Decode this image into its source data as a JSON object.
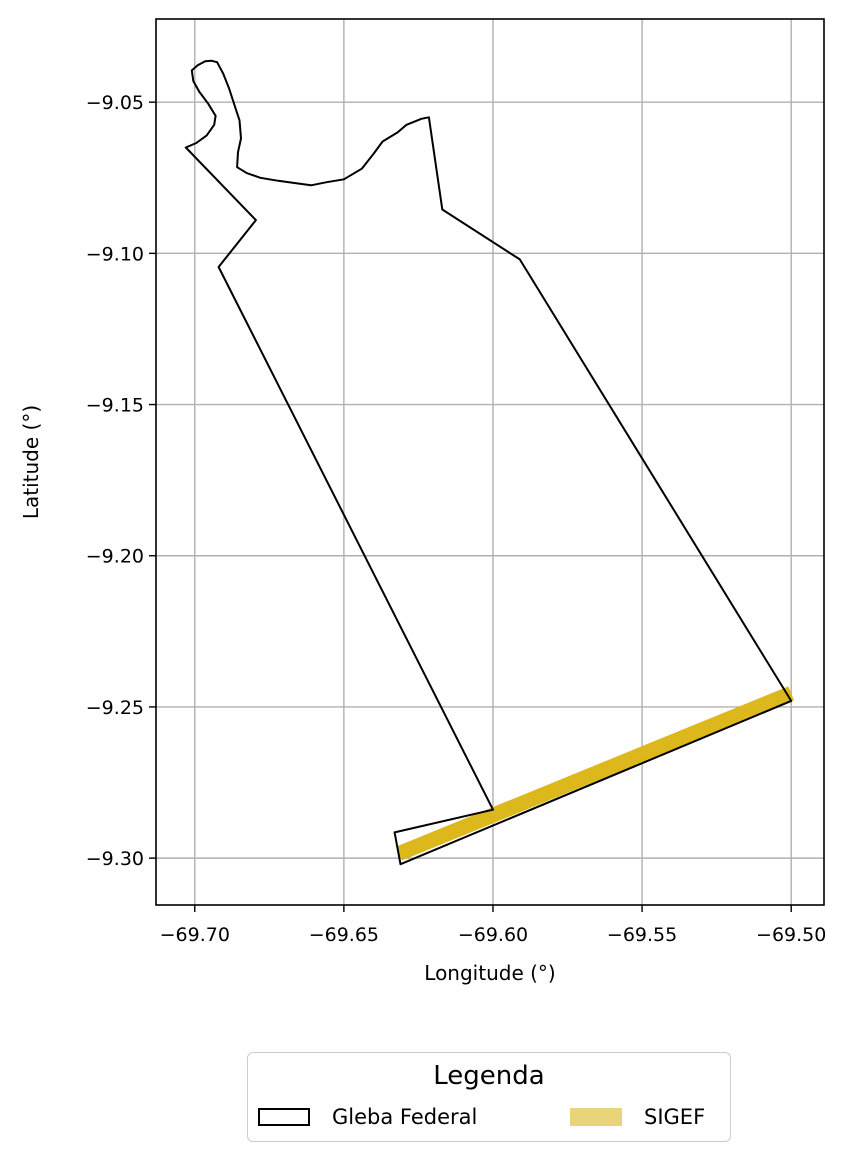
{
  "chart_data": {
    "type": "map",
    "title": "",
    "xlabel": "Longitude (°)",
    "ylabel": "Latitude (°)",
    "xlim": [
      -69.713,
      -69.489
    ],
    "ylim": [
      -9.3155,
      -9.0225
    ],
    "grid": true,
    "xticks": [
      -69.7,
      -69.65,
      -69.6,
      -69.55,
      -69.5
    ],
    "xtick_labels": [
      "−69.70",
      "−69.65",
      "−69.60",
      "−69.55",
      "−69.50"
    ],
    "yticks": [
      -9.05,
      -9.1,
      -9.15,
      -9.2,
      -9.25,
      -9.3
    ],
    "ytick_labels": [
      "−9.05",
      "−9.10",
      "−9.15",
      "−9.20",
      "−9.25",
      "−9.30"
    ],
    "features": {
      "gleba_federal": {
        "name": "Gleba Federal",
        "edge_color": "#000000",
        "polygon": [
          [
            -69.6945,
            -9.0363
          ],
          [
            -69.6925,
            -9.0368
          ],
          [
            -69.6905,
            -9.0405
          ],
          [
            -69.6885,
            -9.0455
          ],
          [
            -69.6865,
            -9.0515
          ],
          [
            -69.685,
            -9.056
          ],
          [
            -69.6845,
            -9.062
          ],
          [
            -69.6855,
            -9.0665
          ],
          [
            -69.6858,
            -9.0715
          ],
          [
            -69.6825,
            -9.0735
          ],
          [
            -69.678,
            -9.075
          ],
          [
            -69.672,
            -9.076
          ],
          [
            -69.666,
            -9.0768
          ],
          [
            -69.661,
            -9.0775
          ],
          [
            -69.656,
            -9.0765
          ],
          [
            -69.65,
            -9.0755
          ],
          [
            -69.644,
            -9.072
          ],
          [
            -69.64,
            -9.067
          ],
          [
            -69.637,
            -9.063
          ],
          [
            -69.632,
            -9.06
          ],
          [
            -69.629,
            -9.0575
          ],
          [
            -69.624,
            -9.0555
          ],
          [
            -69.6215,
            -9.055
          ],
          [
            -69.617,
            -9.0855
          ],
          [
            -69.591,
            -9.102
          ],
          [
            -69.5,
            -9.248
          ],
          [
            -69.631,
            -9.302
          ],
          [
            -69.633,
            -9.2915
          ],
          [
            -69.6,
            -9.284
          ],
          [
            -69.692,
            -9.1045
          ],
          [
            -69.6795,
            -9.089
          ],
          [
            -69.703,
            -9.065
          ],
          [
            -69.6995,
            -9.0635
          ],
          [
            -69.696,
            -9.061
          ],
          [
            -69.6935,
            -9.0575
          ],
          [
            -69.693,
            -9.0545
          ],
          [
            -69.6955,
            -9.0505
          ],
          [
            -69.6985,
            -9.0465
          ],
          [
            -69.7005,
            -9.043
          ],
          [
            -69.701,
            -9.0395
          ],
          [
            -69.699,
            -9.0378
          ],
          [
            -69.6965,
            -9.0365
          ],
          [
            -69.6945,
            -9.0363
          ]
        ]
      },
      "sigef": {
        "name": "SIGEF",
        "fill_color": "#ddb81c",
        "line": [
          [
            -69.6315,
            -9.2985
          ],
          [
            -69.5,
            -9.2455
          ]
        ]
      }
    },
    "legend": {
      "title": "Legenda",
      "placement": "bottom-center",
      "entries": [
        {
          "label": "Gleba Federal",
          "swatch_fill": "#ffffff",
          "swatch_edge": "#000000"
        },
        {
          "label": "SIGEF",
          "swatch_fill": "#ead47a"
        }
      ]
    }
  }
}
